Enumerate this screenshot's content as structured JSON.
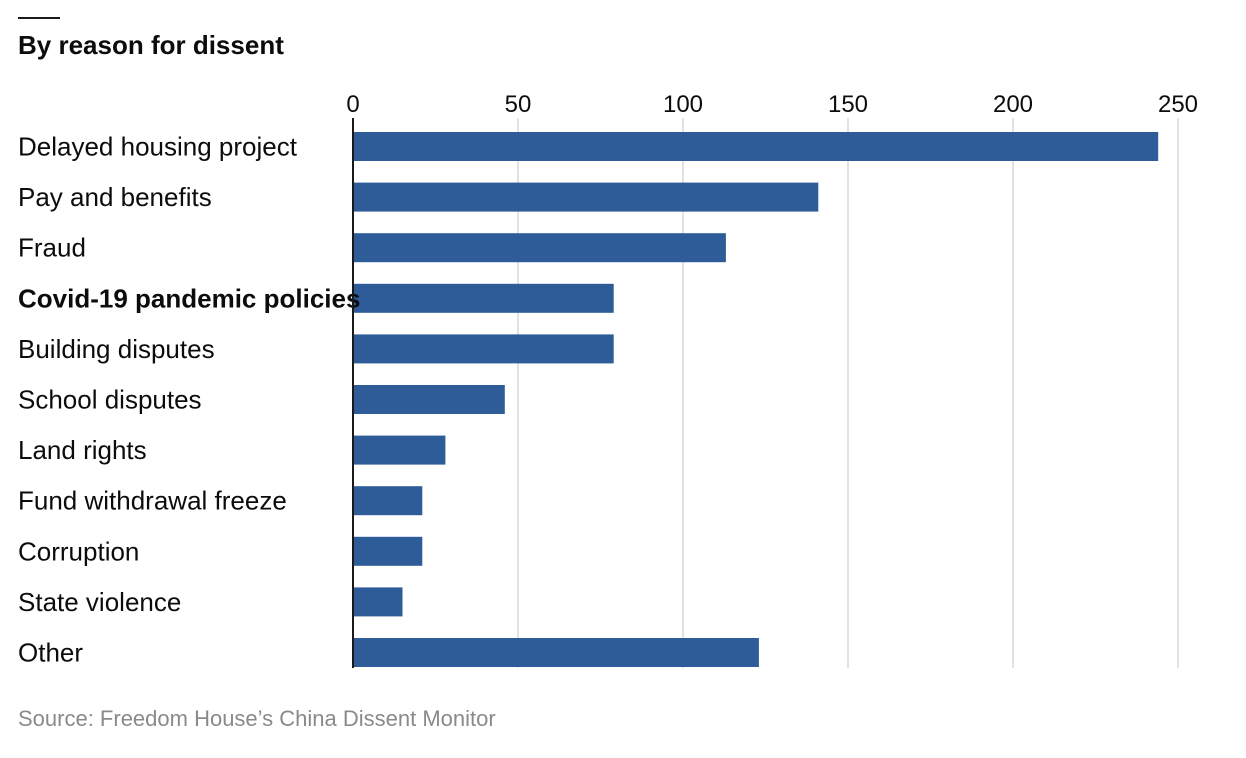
{
  "header": {
    "title": "By reason for dissent"
  },
  "footer": {
    "source": "Source: Freedom House’s China Dissent Monitor"
  },
  "colors": {
    "bar": "#2e5c99",
    "grid": "#d9d9d9",
    "axis": "#1a1a1a"
  },
  "chart_data": {
    "type": "bar",
    "orientation": "horizontal",
    "title": "By reason for dissent",
    "xlabel": "",
    "ylabel": "",
    "xlim": [
      0,
      250
    ],
    "ticks": [
      0,
      50,
      100,
      150,
      200,
      250
    ],
    "tick_labels": [
      "0",
      "50",
      "100",
      "150",
      "200",
      "250"
    ],
    "grid": true,
    "categories": [
      "Delayed housing project",
      "Pay and benefits",
      "Fraud",
      "Covid-19 pandemic policies",
      "Building disputes",
      "School disputes",
      "Land rights",
      "Fund withdrawal freeze",
      "Corruption",
      "State violence",
      "Other"
    ],
    "values": [
      244,
      141,
      113,
      79,
      79,
      46,
      28,
      21,
      21,
      15,
      123
    ],
    "highlighted_category": "Covid-19 pandemic policies"
  }
}
